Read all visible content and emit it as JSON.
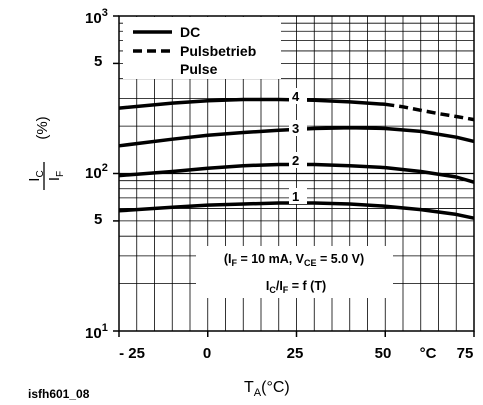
{
  "chart_data": {
    "type": "line",
    "figure_id": "isfh601_08",
    "ylabel": {
      "main": "I",
      "sub": "C",
      "sep": "/",
      "main2": "I",
      "sub2": "F",
      "unit": "(%)"
    },
    "xlabel": {
      "main": "T",
      "sub": "A",
      "unit": "(°C)"
    },
    "x_ticks": [
      "- 25",
      "0",
      "25",
      "50",
      "°C",
      "75"
    ],
    "y_ticks": {
      "top": {
        "base": "10",
        "exp": "3"
      },
      "mid": {
        "base": "10",
        "exp": "2"
      },
      "bottom": {
        "base": "10",
        "exp": "1"
      },
      "fives": [
        "5",
        "5"
      ]
    },
    "xlim": [
      -25,
      75
    ],
    "ylim": [
      10,
      1000
    ],
    "yscale": "log",
    "grid": true,
    "legend": {
      "placement": "top-left",
      "entries": [
        {
          "label": "DC",
          "style": "solid"
        },
        {
          "label": "Pulsbetrieb",
          "style": "dashed"
        },
        {
          "label": "Pulse",
          "style": "none"
        }
      ]
    },
    "annotation": {
      "line1": {
        "a": "(I",
        "a_sub": "F",
        "b": " = 10 mA, V",
        "b_sub": "CE",
        "c": " = 5.0 V)"
      },
      "line2": {
        "a": "I",
        "a_sub": "C",
        "b": "/I",
        "b_sub": "F",
        "c": " = f (T)"
      }
    },
    "series": [
      {
        "label": "4",
        "style": "solid",
        "x": [
          -25,
          -10,
          0,
          10,
          20,
          30,
          40,
          50
        ],
        "y": [
          260,
          280,
          290,
          295,
          295,
          292,
          285,
          275
        ]
      },
      {
        "label": "4",
        "style": "dashed",
        "x": [
          50,
          55,
          60,
          65,
          70,
          75
        ],
        "y": [
          275,
          265,
          252,
          240,
          230,
          220
        ]
      },
      {
        "label": "3",
        "style": "solid",
        "x": [
          -25,
          -10,
          0,
          10,
          20,
          30,
          40,
          50,
          60,
          70,
          75
        ],
        "y": [
          150,
          165,
          175,
          182,
          188,
          193,
          195,
          193,
          185,
          170,
          160
        ]
      },
      {
        "label": "2",
        "style": "solid",
        "x": [
          -25,
          -10,
          0,
          10,
          20,
          30,
          40,
          50,
          60,
          70,
          75
        ],
        "y": [
          97,
          103,
          108,
          112,
          114,
          114,
          112,
          109,
          103,
          95,
          88
        ]
      },
      {
        "label": "1",
        "style": "solid",
        "x": [
          -25,
          -10,
          0,
          10,
          20,
          30,
          40,
          50,
          60,
          70,
          75
        ],
        "y": [
          58,
          61,
          63,
          64,
          65,
          65,
          64,
          62,
          59,
          55,
          52
        ]
      }
    ]
  }
}
